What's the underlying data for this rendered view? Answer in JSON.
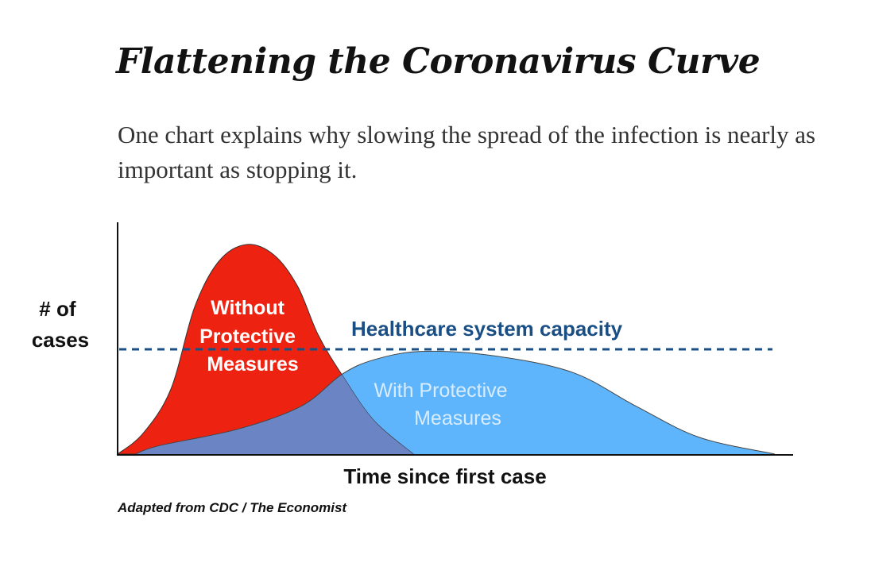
{
  "title": "Flattening the Coronavirus Curve",
  "subtitle": "One chart explains why slowing the spread of the infection is nearly as important as stopping it.",
  "chart_data": {
    "type": "area",
    "xlabel": "Time since first case",
    "ylabel": [
      "# of",
      "cases"
    ],
    "source": "Adapted from CDC / The Economist",
    "axis_ticks": "none",
    "grid": false,
    "legend": "none",
    "series": [
      {
        "name": [
          "Without",
          "Protective",
          "Measures"
        ],
        "color": "#ee2211",
        "x": [
          0,
          3.9,
          8.1,
          11.7,
          15.4,
          19.6,
          23.8,
          27.4,
          30.5,
          34.1,
          39,
          45
        ],
        "values": [
          0,
          10,
          31,
          70,
          92,
          100,
          95,
          80,
          57,
          38,
          16,
          0
        ]
      },
      {
        "name": [
          "With Protective",
          "Measures"
        ],
        "color": "#5eb5fb",
        "x": [
          2.7,
          6.3,
          18.4,
          28,
          34.1,
          39,
          46.2,
          57,
          69.2,
          78.8,
          88.5,
          100
        ],
        "values": [
          0,
          4,
          12,
          23,
          38,
          45,
          49,
          47,
          39,
          23,
          8,
          0
        ]
      }
    ],
    "overlap_color": "#6a84c4",
    "capacity_line": {
      "label": "Healthcare system capacity",
      "value": 50,
      "color": "#1a4f86",
      "style": "dashed"
    }
  }
}
